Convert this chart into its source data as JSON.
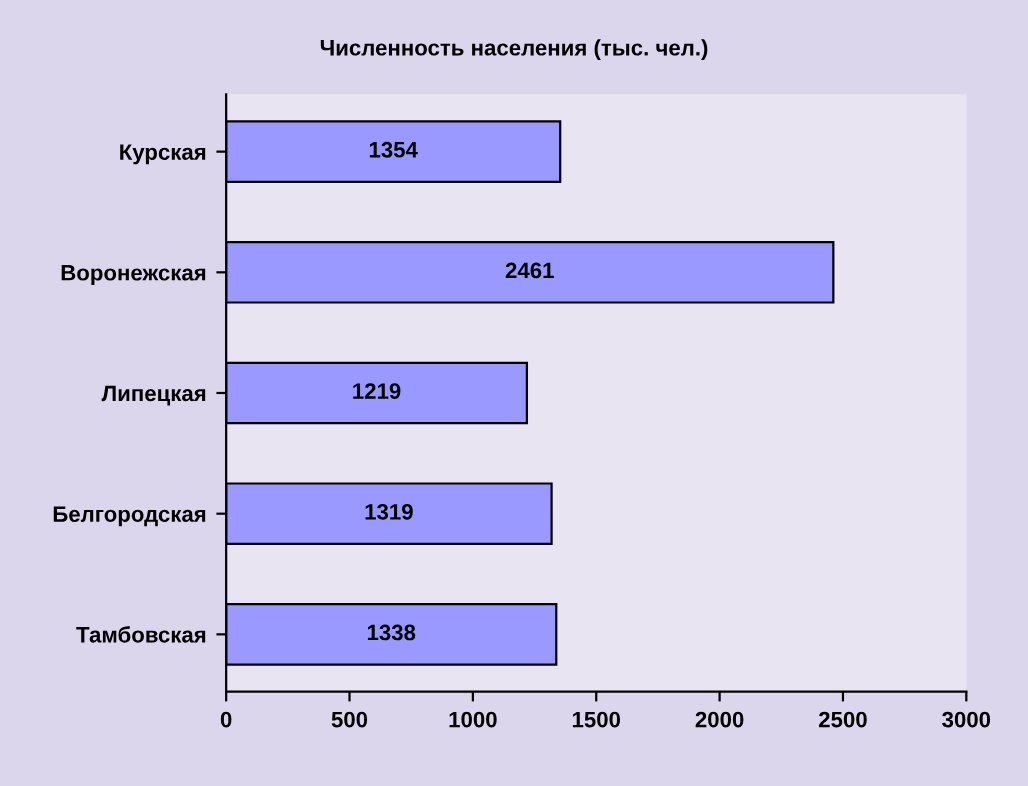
{
  "chart_data": {
    "type": "bar",
    "orientation": "horizontal",
    "title": "Численность населения (тыс. чел.)",
    "categories": [
      "Курская",
      "Воронежская",
      "Липецкая",
      "Белгородская",
      "Тамбовская"
    ],
    "values": [
      1354,
      2461,
      1219,
      1319,
      1338
    ],
    "color": "#9999ff",
    "xlim": [
      0,
      3000
    ],
    "xticks": [
      0,
      500,
      1000,
      1500,
      2000,
      2500,
      3000
    ],
    "data_labels": true,
    "grid": false
  }
}
